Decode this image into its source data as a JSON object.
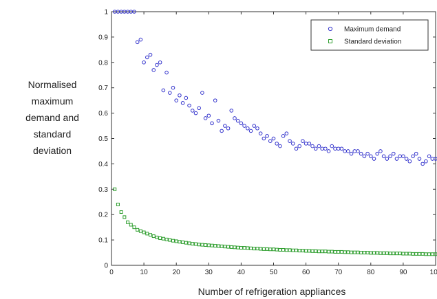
{
  "chart_data": {
    "type": "scatter",
    "xlabel": "Number of refrigeration appliances",
    "ylabel_lines": [
      "Normalised",
      "maximum",
      "demand and",
      "standard",
      "deviation"
    ],
    "xlim": [
      0,
      100
    ],
    "ylim": [
      0,
      1
    ],
    "x_ticks": [
      "0",
      "10",
      "20",
      "30",
      "40",
      "50",
      "60",
      "70",
      "80",
      "90",
      "100"
    ],
    "y_ticks": [
      "0",
      "0.1",
      "0.2",
      "0.3",
      "0.4",
      "0.5",
      "0.6",
      "0.7",
      "0.8",
      "0.9",
      "1"
    ],
    "grid": false,
    "legend_position": "top-right",
    "series": [
      {
        "name": "Maximum demand",
        "marker": "circle",
        "color": "#3333cc",
        "x": [
          1,
          2,
          3,
          4,
          5,
          6,
          7,
          8,
          9,
          10,
          11,
          12,
          13,
          14,
          15,
          16,
          17,
          18,
          19,
          20,
          21,
          22,
          23,
          24,
          25,
          26,
          27,
          28,
          29,
          30,
          31,
          32,
          33,
          34,
          35,
          36,
          37,
          38,
          39,
          40,
          41,
          42,
          43,
          44,
          45,
          46,
          47,
          48,
          49,
          50,
          51,
          52,
          53,
          54,
          55,
          56,
          57,
          58,
          59,
          60,
          61,
          62,
          63,
          64,
          65,
          66,
          67,
          68,
          69,
          70,
          71,
          72,
          73,
          74,
          75,
          76,
          77,
          78,
          79,
          80,
          81,
          82,
          83,
          84,
          85,
          86,
          87,
          88,
          89,
          90,
          91,
          92,
          93,
          94,
          95,
          96,
          97,
          98,
          99,
          100
        ],
        "y": [
          1.0,
          1.0,
          1.0,
          1.0,
          1.0,
          1.0,
          1.0,
          0.88,
          0.89,
          0.8,
          0.82,
          0.83,
          0.77,
          0.79,
          0.8,
          0.69,
          0.76,
          0.68,
          0.7,
          0.65,
          0.67,
          0.64,
          0.66,
          0.63,
          0.61,
          0.6,
          0.62,
          0.68,
          0.58,
          0.59,
          0.56,
          0.65,
          0.57,
          0.53,
          0.55,
          0.54,
          0.61,
          0.58,
          0.57,
          0.56,
          0.55,
          0.54,
          0.53,
          0.55,
          0.54,
          0.52,
          0.5,
          0.51,
          0.49,
          0.5,
          0.48,
          0.47,
          0.51,
          0.52,
          0.49,
          0.48,
          0.46,
          0.47,
          0.49,
          0.48,
          0.48,
          0.47,
          0.46,
          0.47,
          0.46,
          0.46,
          0.45,
          0.47,
          0.46,
          0.46,
          0.46,
          0.45,
          0.45,
          0.44,
          0.45,
          0.45,
          0.44,
          0.43,
          0.44,
          0.43,
          0.42,
          0.44,
          0.45,
          0.43,
          0.42,
          0.43,
          0.44,
          0.42,
          0.43,
          0.43,
          0.42,
          0.41,
          0.43,
          0.44,
          0.42,
          0.4,
          0.41,
          0.43,
          0.42,
          0.42
        ]
      },
      {
        "name": "Standard deviation",
        "marker": "square",
        "color": "#2e9e2e",
        "x": [
          1,
          2,
          3,
          4,
          5,
          6,
          7,
          8,
          9,
          10,
          11,
          12,
          13,
          14,
          15,
          16,
          17,
          18,
          19,
          20,
          21,
          22,
          23,
          24,
          25,
          26,
          27,
          28,
          29,
          30,
          31,
          32,
          33,
          34,
          35,
          36,
          37,
          38,
          39,
          40,
          41,
          42,
          43,
          44,
          45,
          46,
          47,
          48,
          49,
          50,
          51,
          52,
          53,
          54,
          55,
          56,
          57,
          58,
          59,
          60,
          61,
          62,
          63,
          64,
          65,
          66,
          67,
          68,
          69,
          70,
          71,
          72,
          73,
          74,
          75,
          76,
          77,
          78,
          79,
          80,
          81,
          82,
          83,
          84,
          85,
          86,
          87,
          88,
          89,
          90,
          91,
          92,
          93,
          94,
          95,
          96,
          97,
          98,
          99,
          100
        ],
        "y": [
          0.3,
          0.24,
          0.21,
          0.19,
          0.17,
          0.16,
          0.15,
          0.14,
          0.135,
          0.13,
          0.125,
          0.12,
          0.115,
          0.11,
          0.107,
          0.105,
          0.102,
          0.1,
          0.097,
          0.095,
          0.093,
          0.091,
          0.089,
          0.087,
          0.085,
          0.084,
          0.082,
          0.081,
          0.08,
          0.079,
          0.078,
          0.077,
          0.076,
          0.075,
          0.074,
          0.073,
          0.072,
          0.071,
          0.07,
          0.069,
          0.069,
          0.068,
          0.067,
          0.066,
          0.066,
          0.065,
          0.064,
          0.064,
          0.063,
          0.063,
          0.062,
          0.061,
          0.061,
          0.06,
          0.06,
          0.059,
          0.059,
          0.058,
          0.058,
          0.057,
          0.057,
          0.056,
          0.056,
          0.055,
          0.055,
          0.055,
          0.054,
          0.054,
          0.053,
          0.053,
          0.053,
          0.052,
          0.052,
          0.051,
          0.051,
          0.051,
          0.05,
          0.05,
          0.05,
          0.049,
          0.049,
          0.049,
          0.048,
          0.048,
          0.048,
          0.047,
          0.047,
          0.047,
          0.047,
          0.046,
          0.046,
          0.046,
          0.045,
          0.045,
          0.045,
          0.045,
          0.044,
          0.044,
          0.044,
          0.044
        ]
      }
    ]
  }
}
